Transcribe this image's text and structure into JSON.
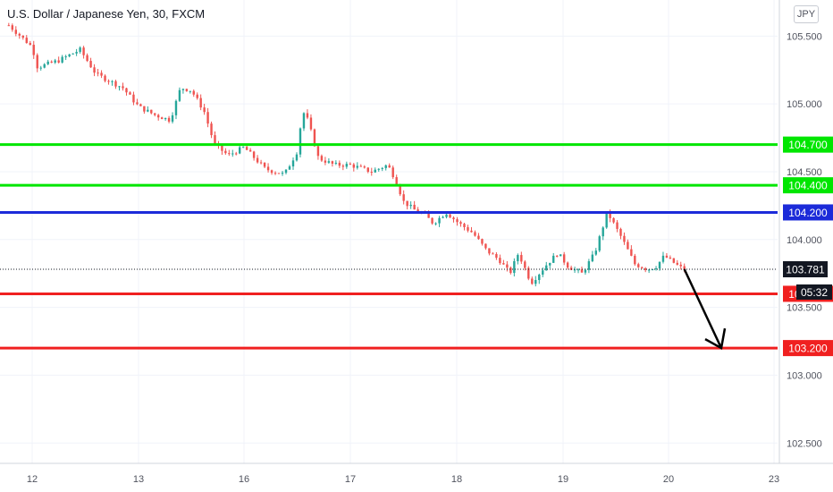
{
  "header": {
    "title": "U.S. Dollar / Japanese Yen, 30, FXCM",
    "currency_button": "JPY"
  },
  "countdown": "05:32",
  "chart_data": {
    "type": "candlestick",
    "title": "U.S. Dollar / Japanese Yen, 30, FXCM",
    "y_ticks": [
      102.5,
      103.0,
      103.5,
      104.0,
      104.5,
      105.0,
      105.5
    ],
    "y_tick_labels": [
      "102.500",
      "103.000",
      "103.500",
      "104.000",
      "104.500",
      "105.000",
      "105.500"
    ],
    "x_ticks": [
      {
        "label": "12",
        "day": 0
      },
      {
        "label": "13",
        "day": 1
      },
      {
        "label": "16",
        "day": 2
      },
      {
        "label": "17",
        "day": 3
      },
      {
        "label": "18",
        "day": 4
      },
      {
        "label": "19",
        "day": 5
      },
      {
        "label": "20",
        "day": 6
      },
      {
        "label": "23",
        "day": 7
      }
    ],
    "ylim": [
      102.35,
      105.7
    ],
    "current_price": {
      "value": 103.781,
      "label": "103.781"
    },
    "horizontal_levels": [
      {
        "value": 104.7,
        "label": "104.700",
        "color": "#00e600"
      },
      {
        "value": 104.4,
        "label": "104.400",
        "color": "#00e600"
      },
      {
        "value": 104.2,
        "label": "104.200",
        "color": "#1c2bd9"
      },
      {
        "value": 103.6,
        "label": "103.600",
        "color": "#f02020"
      },
      {
        "value": 103.2,
        "label": "103.200",
        "color": "#f02020"
      }
    ],
    "price_path": [
      [
        -0.22,
        105.58
      ],
      [
        0.0,
        105.42
      ],
      [
        0.05,
        105.27
      ],
      [
        0.25,
        105.32
      ],
      [
        0.45,
        105.4
      ],
      [
        0.6,
        105.22
      ],
      [
        0.85,
        105.12
      ],
      [
        1.0,
        104.98
      ],
      [
        1.15,
        104.92
      ],
      [
        1.3,
        104.88
      ],
      [
        1.4,
        105.12
      ],
      [
        1.5,
        105.1
      ],
      [
        1.62,
        104.95
      ],
      [
        1.72,
        104.7
      ],
      [
        1.85,
        104.62
      ],
      [
        2.0,
        104.68
      ],
      [
        2.1,
        104.6
      ],
      [
        2.2,
        104.52
      ],
      [
        2.38,
        104.48
      ],
      [
        2.5,
        104.65
      ],
      [
        2.55,
        104.95
      ],
      [
        2.6,
        104.88
      ],
      [
        2.7,
        104.6
      ],
      [
        2.85,
        104.55
      ],
      [
        3.0,
        104.55
      ],
      [
        3.2,
        104.5
      ],
      [
        3.35,
        104.55
      ],
      [
        3.42,
        104.45
      ],
      [
        3.5,
        104.28
      ],
      [
        3.6,
        104.22
      ],
      [
        3.7,
        104.18
      ],
      [
        3.78,
        104.12
      ],
      [
        3.9,
        104.2
      ],
      [
        4.02,
        104.12
      ],
      [
        4.15,
        104.05
      ],
      [
        4.28,
        103.92
      ],
      [
        4.4,
        103.85
      ],
      [
        4.5,
        103.75
      ],
      [
        4.58,
        103.9
      ],
      [
        4.7,
        103.68
      ],
      [
        4.85,
        103.82
      ],
      [
        4.95,
        103.9
      ],
      [
        5.05,
        103.8
      ],
      [
        5.18,
        103.75
      ],
      [
        5.3,
        103.9
      ],
      [
        5.42,
        104.2
      ],
      [
        5.55,
        104.02
      ],
      [
        5.68,
        103.82
      ],
      [
        5.8,
        103.78
      ],
      [
        5.88,
        103.8
      ],
      [
        5.96,
        103.88
      ],
      [
        6.1,
        103.8
      ],
      [
        6.15,
        103.781
      ]
    ]
  }
}
